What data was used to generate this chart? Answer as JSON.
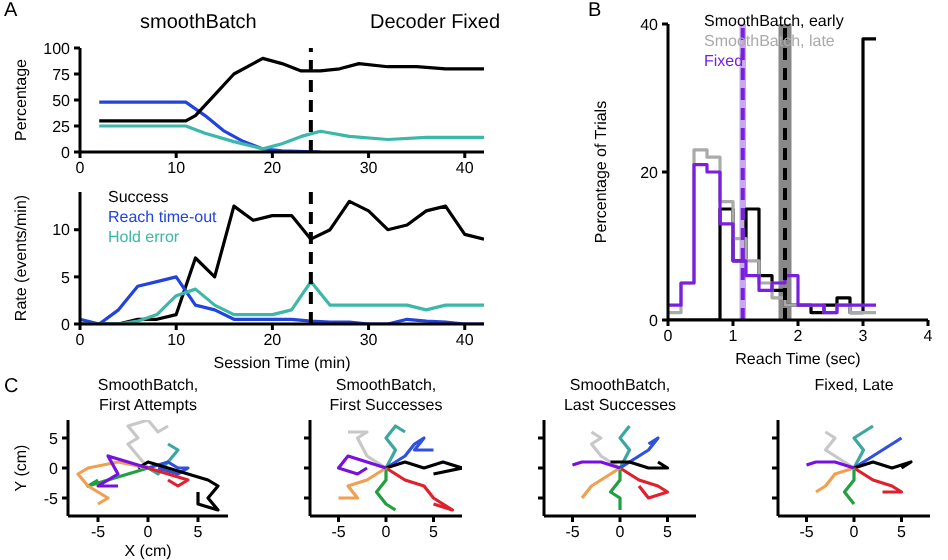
{
  "chart_data": [
    {
      "type": "line",
      "ylabel": "Percentage",
      "xlim": [
        0,
        42
      ],
      "xticks": [
        0,
        10,
        20,
        30,
        40
      ],
      "ylim": [
        0,
        100
      ],
      "yticks": [
        0,
        25,
        50,
        75,
        100
      ],
      "marker": "none",
      "line_style": "solid",
      "annotations": [
        "A",
        "smoothBatch",
        "Decoder Fixed"
      ],
      "ref_lines": [
        {
          "axis": "x",
          "value": 24,
          "color": "#000000",
          "line_style": "dashed"
        }
      ],
      "series": [
        {
          "color": "#2244dd",
          "x": [
            2,
            11,
            13,
            15,
            17,
            19,
            21,
            25
          ],
          "values": [
            48,
            48,
            35,
            20,
            10,
            3,
            1,
            0
          ]
        },
        {
          "color": "#3cb8a8",
          "x": [
            2,
            11,
            13,
            16,
            19,
            21,
            23,
            25,
            28,
            32,
            36,
            42
          ],
          "values": [
            25,
            25,
            18,
            10,
            3,
            8,
            15,
            20,
            15,
            12,
            14,
            14
          ]
        },
        {
          "color": "#000000",
          "x": [
            2,
            5,
            8,
            11,
            12,
            14,
            16,
            18,
            19,
            21,
            23,
            25,
            27,
            29,
            32,
            35,
            38,
            42
          ],
          "values": [
            30,
            30,
            30,
            30,
            35,
            55,
            75,
            85,
            90,
            85,
            78,
            78,
            80,
            85,
            82,
            82,
            80,
            80
          ]
        }
      ]
    },
    {
      "type": "line",
      "xlabel": "Session Time (min)",
      "ylabel": "Rate (events/min)",
      "xlim": [
        0,
        42
      ],
      "xticks": [
        0,
        10,
        20,
        30,
        40
      ],
      "ylim": [
        0,
        14
      ],
      "yticks": [
        0,
        5,
        10
      ],
      "marker": "none",
      "line_style": "solid",
      "legend": "top left",
      "x": [
        0,
        2,
        4,
        6,
        8,
        10,
        12,
        14,
        16,
        18,
        20,
        22,
        24,
        26,
        28,
        30,
        32,
        34,
        36,
        38,
        40,
        42
      ],
      "ref_lines": [
        {
          "axis": "x",
          "value": 24,
          "color": "#000000",
          "line_style": "dashed"
        }
      ],
      "series": [
        {
          "name": "Success",
          "color": "#000000",
          "values": [
            0,
            0,
            0,
            0.5,
            0.5,
            1,
            7,
            5,
            12.5,
            11,
            11.5,
            11.5,
            9,
            10,
            13,
            12,
            10,
            10.5,
            12,
            12.5,
            9.5,
            9
          ]
        },
        {
          "name": "Reach time-out",
          "color": "#2244dd",
          "values": [
            0.5,
            0,
            1.5,
            4,
            4.5,
            5,
            2,
            1.5,
            0.5,
            0.5,
            0.5,
            0.5,
            0.3,
            0.2,
            0.2,
            0,
            0,
            0.5,
            0.3,
            0.2,
            0,
            0
          ]
        },
        {
          "name": "Hold error",
          "color": "#3cb8a8",
          "values": [
            0,
            0,
            0,
            0.3,
            1,
            3,
            3.7,
            2,
            1,
            1,
            1,
            1.5,
            4.5,
            2,
            2,
            2,
            2,
            2,
            1.5,
            2,
            2,
            2
          ]
        }
      ]
    },
    {
      "type": "histogram",
      "xlabel": "Reach Time (sec)",
      "ylabel": "Percentage of Trials",
      "xlim": [
        0,
        4
      ],
      "xticks": [
        0,
        1,
        2,
        3,
        4
      ],
      "ylim": [
        0,
        40
      ],
      "yticks": [
        0,
        20,
        40
      ],
      "legend": "top left",
      "annotations": [
        "B"
      ],
      "bins": [
        0,
        0.2,
        0.4,
        0.6,
        0.8,
        1,
        1.2,
        1.4,
        1.6,
        1.8,
        2,
        2.2,
        2.4,
        2.6,
        2.8,
        3,
        3.2
      ],
      "bands": [
        {
          "axis": "x",
          "from": 1.1,
          "to": 1.2,
          "color": "#c8a8f0"
        },
        {
          "axis": "x",
          "from": 1.7,
          "to": 1.9,
          "color": "#888888"
        }
      ],
      "ref_lines": [
        {
          "axis": "x",
          "value": 1.15,
          "color": "#7a1fe0",
          "line_style": "dashed"
        },
        {
          "axis": "x",
          "value": 1.8,
          "color": "#000000",
          "line_style": "dashed"
        }
      ],
      "series": [
        {
          "name": "SmoothBatch, early",
          "color": "#000000",
          "values": [
            0,
            0,
            0,
            0,
            15,
            8,
            15,
            6,
            4,
            2,
            2,
            1,
            2,
            3,
            1,
            38
          ]
        },
        {
          "name": "SmoothBatch, late",
          "color": "#aaaaaa",
          "values": [
            1,
            5,
            23,
            22,
            16,
            11,
            8,
            5,
            3,
            2,
            2,
            2,
            1,
            2,
            1,
            1
          ]
        },
        {
          "name": "Fixed",
          "color": "#7a1fe0",
          "values": [
            2,
            5,
            21,
            20,
            13,
            8,
            6,
            4,
            5,
            6,
            2,
            2,
            1,
            2,
            2,
            2
          ]
        }
      ]
    },
    {
      "type": "line",
      "title": "SmoothBatch,\nFirst Attempts",
      "xlabel": "X (cm)",
      "ylabel": "Y (cm)",
      "xlim": [
        -8,
        8
      ],
      "xticks": [
        -5,
        0,
        5
      ],
      "ylim": [
        -8,
        8
      ],
      "yticks": [
        -5,
        0,
        5
      ],
      "marker": "none",
      "annotations": [
        "C"
      ],
      "series": [
        {
          "color": "#c8c8c8",
          "x": [
            0,
            -1,
            -2,
            -1,
            -2,
            0,
            1,
            2
          ],
          "values": [
            0,
            2,
            4,
            5,
            7,
            8,
            6,
            7
          ]
        },
        {
          "color": "#3aa8a0",
          "x": [
            0,
            1,
            2,
            3,
            2
          ],
          "values": [
            0,
            -1,
            1,
            3,
            4
          ]
        },
        {
          "color": "#3050e0",
          "x": [
            0,
            2,
            3,
            4,
            3,
            1
          ],
          "values": [
            0,
            1,
            0,
            0,
            -1,
            0
          ]
        },
        {
          "color": "#000000",
          "x": [
            -1,
            0,
            2,
            4,
            6,
            7,
            6,
            7,
            5,
            5
          ],
          "values": [
            0,
            1,
            0,
            -1,
            -2,
            -3,
            -5,
            -7,
            -6,
            -4
          ]
        },
        {
          "color": "#e0202c",
          "x": [
            0,
            2,
            4,
            3,
            2
          ],
          "values": [
            0,
            -1,
            -2,
            -3,
            -2
          ]
        },
        {
          "color": "#20a040",
          "x": [
            0,
            -2,
            -4,
            -6,
            -5
          ],
          "values": [
            0,
            -1,
            -2,
            -3,
            -2
          ]
        },
        {
          "color": "#f0a050",
          "x": [
            0,
            -3,
            -6,
            -7,
            -6,
            -4,
            -5
          ],
          "values": [
            0,
            1,
            0,
            -1,
            -3,
            -5,
            -6
          ]
        },
        {
          "color": "#7a10e0",
          "x": [
            0,
            -2,
            -4,
            -3,
            -5,
            -3
          ],
          "values": [
            0,
            1,
            2,
            -1,
            -3,
            -3
          ]
        }
      ]
    },
    {
      "type": "line",
      "title": "SmoothBatch,\nFirst Successes",
      "xlim": [
        -8,
        8
      ],
      "xticks": [
        -5,
        0,
        5
      ],
      "ylim": [
        -8,
        8
      ],
      "yticks": [
        -5,
        0,
        5
      ],
      "tick_labels": "x",
      "marker": "none",
      "series": [
        {
          "color": "#c8c8c8",
          "x": [
            0,
            -2,
            -3,
            -2,
            -4
          ],
          "values": [
            0,
            2,
            5,
            6,
            6
          ]
        },
        {
          "color": "#3aa8a0",
          "x": [
            0,
            1,
            0,
            1,
            2
          ],
          "values": [
            0,
            3,
            5,
            7,
            6
          ]
        },
        {
          "color": "#3050e0",
          "x": [
            0,
            2,
            3,
            4,
            3,
            5
          ],
          "values": [
            0,
            2,
            4,
            5,
            3,
            3
          ]
        },
        {
          "color": "#000000",
          "x": [
            0,
            2,
            4,
            6,
            8,
            5
          ],
          "values": [
            0,
            1,
            0,
            1,
            0,
            -1
          ]
        },
        {
          "color": "#e0202c",
          "x": [
            0,
            2,
            4,
            5,
            7,
            5
          ],
          "values": [
            0,
            -2,
            -3,
            -5,
            -7,
            -6
          ]
        },
        {
          "color": "#20a040",
          "x": [
            0,
            0,
            -1,
            0,
            1
          ],
          "values": [
            0,
            -2,
            -4,
            -6,
            -7
          ]
        },
        {
          "color": "#f0a050",
          "x": [
            0,
            -2,
            -4,
            -3,
            -5
          ],
          "values": [
            0,
            -2,
            -3,
            -5,
            -5
          ]
        },
        {
          "color": "#7a10e0",
          "x": [
            0,
            -2,
            -4,
            -5,
            -3,
            -2
          ],
          "values": [
            0,
            1,
            2,
            0,
            -1,
            0
          ]
        }
      ]
    },
    {
      "type": "line",
      "title": "SmoothBatch,\nLast Successes",
      "xlim": [
        -8,
        8
      ],
      "xticks": [
        -5,
        0,
        5
      ],
      "ylim": [
        -8,
        8
      ],
      "yticks": [
        -5,
        0,
        5
      ],
      "tick_labels": "x",
      "marker": "none",
      "series": [
        {
          "color": "#c8c8c8",
          "x": [
            0,
            -2,
            -3,
            -2,
            -3
          ],
          "values": [
            0,
            2,
            4,
            5,
            6
          ]
        },
        {
          "color": "#3aa8a0",
          "x": [
            0,
            1,
            0,
            1
          ],
          "values": [
            0,
            3,
            5,
            7
          ]
        },
        {
          "color": "#3050e0",
          "x": [
            0,
            2,
            3,
            4,
            3
          ],
          "values": [
            0,
            2,
            3,
            5,
            4
          ]
        },
        {
          "color": "#000000",
          "x": [
            -1,
            1,
            3,
            5,
            4
          ],
          "values": [
            1,
            1,
            0,
            0,
            1
          ]
        },
        {
          "color": "#e0202c",
          "x": [
            0,
            2,
            4,
            5,
            3,
            2
          ],
          "values": [
            0,
            -2,
            -3,
            -4,
            -5,
            -3
          ]
        },
        {
          "color": "#20a040",
          "x": [
            0,
            0,
            -1,
            0,
            0
          ],
          "values": [
            0,
            -2,
            -4,
            -5,
            -7
          ]
        },
        {
          "color": "#f0a050",
          "x": [
            0,
            -2,
            -3,
            -4
          ],
          "values": [
            0,
            -2,
            -3,
            -5
          ]
        },
        {
          "color": "#7a10e0",
          "x": [
            0,
            -2,
            -4,
            -5
          ],
          "values": [
            0,
            1,
            1,
            0.5
          ]
        }
      ]
    },
    {
      "type": "line",
      "title": "Fixed, Late",
      "xlim": [
        -8,
        8
      ],
      "xticks": [
        -5,
        0,
        5
      ],
      "ylim": [
        -8,
        8
      ],
      "yticks": [
        -5,
        0,
        5
      ],
      "tick_labels": "x",
      "marker": "none",
      "series": [
        {
          "color": "#c8c8c8",
          "x": [
            0,
            -2,
            -3,
            -2,
            -3
          ],
          "values": [
            0,
            2,
            3,
            5,
            6
          ]
        },
        {
          "color": "#3aa8a0",
          "x": [
            0,
            1,
            0,
            1,
            2
          ],
          "values": [
            0,
            3,
            5,
            6,
            7
          ]
        },
        {
          "color": "#3050e0",
          "x": [
            0,
            2,
            3,
            4,
            5
          ],
          "values": [
            0,
            2,
            3,
            4,
            5
          ]
        },
        {
          "color": "#000000",
          "x": [
            0,
            2,
            4,
            6,
            5
          ],
          "values": [
            0,
            1,
            0,
            1,
            0
          ]
        },
        {
          "color": "#e0202c",
          "x": [
            0,
            2,
            4,
            5,
            3
          ],
          "values": [
            0,
            -2,
            -3,
            -4,
            -4
          ]
        },
        {
          "color": "#20a040",
          "x": [
            0,
            0,
            -1,
            0
          ],
          "values": [
            0,
            -2,
            -4,
            -6
          ]
        },
        {
          "color": "#f0a050",
          "x": [
            0,
            -2,
            -3,
            -4
          ],
          "values": [
            0,
            -1,
            -3,
            -4
          ]
        },
        {
          "color": "#7a10e0",
          "x": [
            0,
            -2,
            -4,
            -5
          ],
          "values": [
            0,
            1,
            1,
            0.5
          ]
        }
      ]
    }
  ]
}
